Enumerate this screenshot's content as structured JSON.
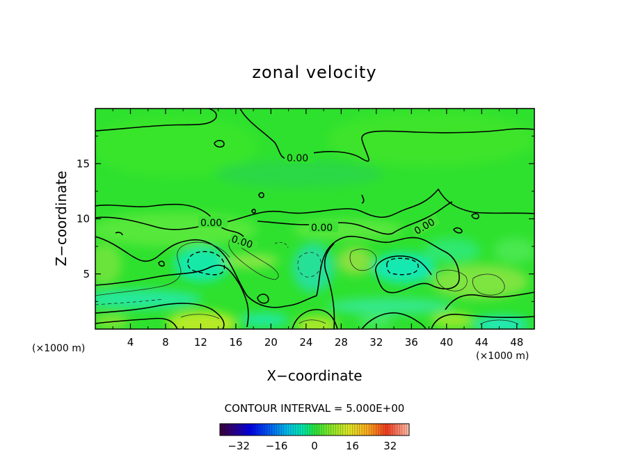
{
  "chart_data": {
    "type": "heatmap",
    "title": "zonal velocity",
    "xlabel": "X−coordinate",
    "ylabel": "Z−coordinate",
    "x_unit_left": "(×1000 m)",
    "x_unit_right": "(×1000 m)",
    "xlim": [
      0,
      50
    ],
    "ylim": [
      0,
      20
    ],
    "x_ticks": [
      4,
      8,
      12,
      16,
      20,
      24,
      28,
      32,
      36,
      40,
      44,
      48
    ],
    "y_ticks": [
      5,
      10,
      15
    ],
    "contour_interval_text": "CONTOUR INTERVAL = 5.000E+00",
    "contour_labels": [
      {
        "text": "0.00",
        "x": 23.2,
        "y": 15.4
      },
      {
        "text": "0.00",
        "x": 13.3,
        "y": 9.6
      },
      {
        "text": "0.00",
        "x": 17.0,
        "y": 7.6
      },
      {
        "text": "0.00",
        "x": 26.0,
        "y": 9.2
      },
      {
        "text": "0.00",
        "x": 37.5,
        "y": 9.0
      }
    ],
    "colorbar": {
      "range": [
        -40,
        40
      ],
      "ticks": [
        -32,
        -16,
        0,
        16,
        32
      ],
      "tick_labels": [
        "−32",
        "−16",
        "0",
        "16",
        "32"
      ]
    },
    "grid": false,
    "legend": "colorbar-bottom"
  }
}
